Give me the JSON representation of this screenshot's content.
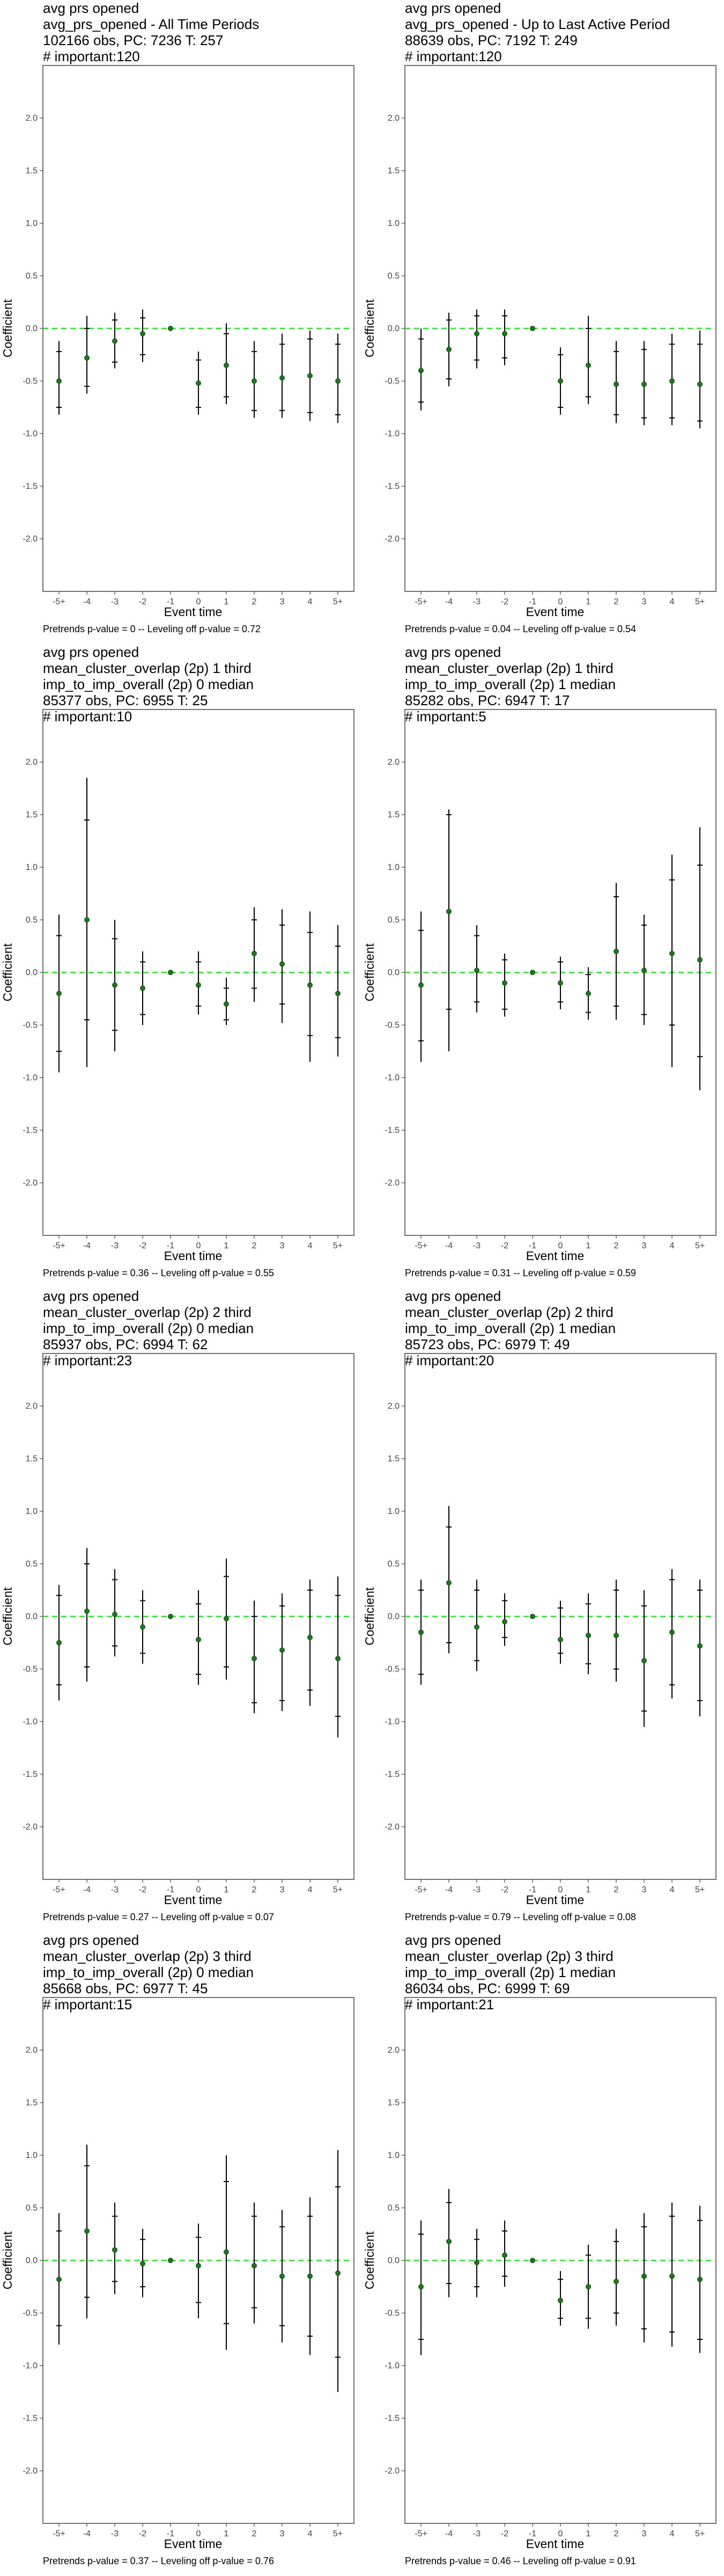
{
  "chart_data": [
    {
      "type": "errorbar",
      "title_lines": [
        "avg prs opened",
        "avg_prs_opened - All Time Periods",
        "102166 obs, PC: 7236 T: 257",
        "# important:120"
      ],
      "footer": "Pretrends p-value = 0 -- Leveling off p-value = 0.72",
      "xlabel": "Event time",
      "ylabel": "Coefficient",
      "categories": [
        "-5+",
        "-4",
        "-3",
        "-2",
        "-1",
        "0",
        "1",
        "2",
        "3",
        "4",
        "5+"
      ],
      "ylim": [
        -2.5,
        2.5
      ],
      "yticks": [
        "2.0",
        "1.5",
        "1.0",
        "0.5",
        "0.0",
        "-0.5",
        "-1.0",
        "-1.5",
        "-2.0"
      ],
      "estimates": [
        -0.5,
        -0.28,
        -0.12,
        -0.05,
        0.0,
        -0.52,
        -0.35,
        -0.5,
        -0.47,
        -0.45,
        -0.5
      ],
      "ci95_low": [
        -0.82,
        -0.62,
        -0.38,
        -0.32,
        0.0,
        -0.82,
        -0.72,
        -0.85,
        -0.85,
        -0.88,
        -0.9
      ],
      "ci95_high": [
        -0.12,
        0.12,
        0.15,
        0.18,
        0.0,
        -0.22,
        0.05,
        -0.12,
        -0.05,
        -0.02,
        -0.05
      ],
      "ci90_low": [
        -0.75,
        -0.55,
        -0.32,
        -0.25,
        0.0,
        -0.75,
        -0.65,
        -0.78,
        -0.78,
        -0.8,
        -0.82
      ],
      "ci90_high": [
        -0.22,
        0.0,
        0.08,
        0.1,
        0.0,
        -0.3,
        -0.05,
        -0.22,
        -0.15,
        -0.1,
        -0.15
      ]
    },
    {
      "type": "errorbar",
      "title_lines": [
        "avg prs opened",
        "avg_prs_opened - Up to Last Active Period",
        "88639 obs, PC: 7192 T: 249",
        "# important:120"
      ],
      "footer": "Pretrends p-value = 0.04 -- Leveling off p-value = 0.54",
      "xlabel": "Event time",
      "ylabel": "Coefficient",
      "categories": [
        "-5+",
        "-4",
        "-3",
        "-2",
        "-1",
        "0",
        "1",
        "2",
        "3",
        "4",
        "5+"
      ],
      "ylim": [
        -2.5,
        2.5
      ],
      "yticks": [
        "2.0",
        "1.5",
        "1.0",
        "0.5",
        "0.0",
        "-0.5",
        "-1.0",
        "-1.5",
        "-2.0"
      ],
      "estimates": [
        -0.4,
        -0.2,
        -0.05,
        -0.05,
        0.0,
        -0.5,
        -0.35,
        -0.53,
        -0.53,
        -0.5,
        -0.53
      ],
      "ci95_low": [
        -0.78,
        -0.55,
        -0.38,
        -0.35,
        0.0,
        -0.82,
        -0.72,
        -0.9,
        -0.92,
        -0.92,
        -0.95
      ],
      "ci95_high": [
        0.0,
        0.15,
        0.18,
        0.18,
        0.0,
        -0.18,
        0.12,
        -0.12,
        -0.12,
        -0.05,
        -0.02
      ],
      "ci90_low": [
        -0.7,
        -0.48,
        -0.3,
        -0.28,
        0.0,
        -0.75,
        -0.65,
        -0.82,
        -0.85,
        -0.85,
        -0.88
      ],
      "ci90_high": [
        -0.1,
        0.08,
        0.12,
        0.12,
        0.0,
        -0.25,
        0.0,
        -0.22,
        -0.2,
        -0.15,
        -0.15
      ]
    },
    {
      "type": "errorbar",
      "title_lines": [
        "avg prs opened",
        "mean_cluster_overlap (2p) 1 third",
        "imp_to_imp_overall (2p) 0 median",
        "85377 obs, PC: 6955 T: 25",
        "# important:10"
      ],
      "footer": "Pretrends p-value = 0.36 -- Leveling off p-value = 0.55",
      "xlabel": "Event time",
      "ylabel": "Coefficient",
      "categories": [
        "-5+",
        "-4",
        "-3",
        "-2",
        "-1",
        "0",
        "1",
        "2",
        "3",
        "4",
        "5+"
      ],
      "ylim": [
        -2.5,
        2.5
      ],
      "yticks": [
        "2.0",
        "1.5",
        "1.0",
        "0.5",
        "0.0",
        "-0.5",
        "-1.0",
        "-1.5",
        "-2.0"
      ],
      "estimates": [
        -0.2,
        0.5,
        -0.12,
        -0.15,
        0.0,
        -0.12,
        -0.3,
        0.18,
        0.08,
        -0.12,
        -0.2
      ],
      "ci95_low": [
        -0.95,
        -0.9,
        -0.75,
        -0.5,
        0.0,
        -0.4,
        -0.5,
        -0.28,
        -0.48,
        -0.85,
        -0.8
      ],
      "ci95_high": [
        0.55,
        1.85,
        0.5,
        0.2,
        0.0,
        0.2,
        -0.05,
        0.62,
        0.6,
        0.58,
        0.45
      ],
      "ci90_low": [
        -0.75,
        -0.45,
        -0.55,
        -0.4,
        0.0,
        -0.32,
        -0.45,
        -0.15,
        -0.3,
        -0.6,
        -0.62
      ],
      "ci90_high": [
        0.35,
        1.45,
        0.32,
        0.1,
        0.0,
        0.1,
        -0.15,
        0.5,
        0.45,
        0.38,
        0.25
      ]
    },
    {
      "type": "errorbar",
      "title_lines": [
        "avg prs opened",
        "mean_cluster_overlap (2p) 1 third",
        "imp_to_imp_overall (2p) 1 median",
        "85282 obs, PC: 6947 T: 17",
        "# important:5"
      ],
      "footer": "Pretrends p-value = 0.31 -- Leveling off p-value = 0.59",
      "xlabel": "Event time",
      "ylabel": "Coefficient",
      "categories": [
        "-5+",
        "-4",
        "-3",
        "-2",
        "-1",
        "0",
        "1",
        "2",
        "3",
        "4",
        "5+"
      ],
      "ylim": [
        -2.5,
        2.5
      ],
      "yticks": [
        "2.0",
        "1.5",
        "1.0",
        "0.5",
        "0.0",
        "-0.5",
        "-1.0",
        "-1.5",
        "-2.0"
      ],
      "estimates": [
        -0.12,
        0.58,
        0.02,
        -0.1,
        0.0,
        -0.1,
        -0.2,
        0.2,
        0.02,
        0.18,
        0.12
      ],
      "ci95_low": [
        -0.85,
        -0.75,
        -0.38,
        -0.42,
        0.0,
        -0.35,
        -0.45,
        -0.45,
        -0.5,
        -0.9,
        -1.12
      ],
      "ci95_high": [
        0.58,
        1.55,
        0.45,
        0.18,
        0.0,
        0.15,
        0.05,
        0.85,
        0.55,
        1.12,
        1.38
      ],
      "ci90_low": [
        -0.65,
        -0.35,
        -0.28,
        -0.35,
        0.0,
        -0.28,
        -0.38,
        -0.32,
        -0.4,
        -0.5,
        -0.8
      ],
      "ci90_high": [
        0.4,
        1.5,
        0.35,
        0.12,
        0.0,
        0.1,
        -0.02,
        0.72,
        0.45,
        0.88,
        1.02
      ]
    },
    {
      "type": "errorbar",
      "title_lines": [
        "avg prs opened",
        "mean_cluster_overlap (2p) 2 third",
        "imp_to_imp_overall (2p) 0 median",
        "85937 obs, PC: 6994 T: 62",
        "# important:23"
      ],
      "footer": "Pretrends p-value = 0.27 -- Leveling off p-value = 0.07",
      "xlabel": "Event time",
      "ylabel": "Coefficient",
      "categories": [
        "-5+",
        "-4",
        "-3",
        "-2",
        "-1",
        "0",
        "1",
        "2",
        "3",
        "4",
        "5+"
      ],
      "ylim": [
        -2.5,
        2.5
      ],
      "yticks": [
        "2.0",
        "1.5",
        "1.0",
        "0.5",
        "0.0",
        "-0.5",
        "-1.0",
        "-1.5",
        "-2.0"
      ],
      "estimates": [
        -0.25,
        0.05,
        0.02,
        -0.1,
        0.0,
        -0.22,
        -0.02,
        -0.4,
        -0.32,
        -0.2,
        -0.4
      ],
      "ci95_low": [
        -0.8,
        -0.62,
        -0.38,
        -0.45,
        0.0,
        -0.65,
        -0.6,
        -0.92,
        -0.9,
        -0.85,
        -1.15
      ],
      "ci95_high": [
        0.3,
        0.65,
        0.45,
        0.25,
        0.0,
        0.25,
        0.55,
        0.15,
        0.22,
        0.35,
        0.38
      ],
      "ci90_low": [
        -0.65,
        -0.48,
        -0.28,
        -0.35,
        0.0,
        -0.55,
        -0.48,
        -0.82,
        -0.8,
        -0.7,
        -0.95
      ],
      "ci90_high": [
        0.2,
        0.5,
        0.35,
        0.15,
        0.0,
        0.12,
        0.38,
        0.0,
        0.1,
        0.25,
        0.2
      ]
    },
    {
      "type": "errorbar",
      "title_lines": [
        "avg prs opened",
        "mean_cluster_overlap (2p) 2 third",
        "imp_to_imp_overall (2p) 1 median",
        "85723 obs, PC: 6979 T: 49",
        "# important:20"
      ],
      "footer": "Pretrends p-value = 0.79 -- Leveling off p-value = 0.08",
      "xlabel": "Event time",
      "ylabel": "Coefficient",
      "categories": [
        "-5+",
        "-4",
        "-3",
        "-2",
        "-1",
        "0",
        "1",
        "2",
        "3",
        "4",
        "5+"
      ],
      "ylim": [
        -2.5,
        2.5
      ],
      "yticks": [
        "2.0",
        "1.5",
        "1.0",
        "0.5",
        "0.0",
        "-0.5",
        "-1.0",
        "-1.5",
        "-2.0"
      ],
      "estimates": [
        -0.15,
        0.32,
        -0.1,
        -0.05,
        0.0,
        -0.22,
        -0.18,
        -0.18,
        -0.42,
        -0.15,
        -0.28
      ],
      "ci95_low": [
        -0.65,
        -0.35,
        -0.52,
        -0.28,
        0.0,
        -0.45,
        -0.55,
        -0.62,
        -1.05,
        -0.78,
        -0.95
      ],
      "ci95_high": [
        0.35,
        1.05,
        0.35,
        0.22,
        0.0,
        0.15,
        0.22,
        0.35,
        0.25,
        0.45,
        0.35
      ],
      "ci90_low": [
        -0.55,
        -0.25,
        -0.42,
        -0.2,
        0.0,
        -0.35,
        -0.45,
        -0.5,
        -0.9,
        -0.65,
        -0.8
      ],
      "ci90_high": [
        0.25,
        0.85,
        0.25,
        0.15,
        0.0,
        0.08,
        0.12,
        0.25,
        0.1,
        0.35,
        0.25
      ]
    },
    {
      "type": "errorbar",
      "title_lines": [
        "avg prs opened",
        "mean_cluster_overlap (2p) 3 third",
        "imp_to_imp_overall (2p) 0 median",
        "85668 obs, PC: 6977 T: 45",
        "# important:15"
      ],
      "footer": "Pretrends p-value = 0.37 -- Leveling off p-value = 0.76",
      "xlabel": "Event time",
      "ylabel": "Coefficient",
      "categories": [
        "-5+",
        "-4",
        "-3",
        "-2",
        "-1",
        "0",
        "1",
        "2",
        "3",
        "4",
        "5+"
      ],
      "ylim": [
        -2.5,
        2.5
      ],
      "yticks": [
        "2.0",
        "1.5",
        "1.0",
        "0.5",
        "0.0",
        "-0.5",
        "-1.0",
        "-1.5",
        "-2.0"
      ],
      "estimates": [
        -0.18,
        0.28,
        0.1,
        -0.03,
        0.0,
        -0.05,
        0.08,
        -0.05,
        -0.15,
        -0.15,
        -0.12
      ],
      "ci95_low": [
        -0.8,
        -0.55,
        -0.32,
        -0.35,
        0.0,
        -0.55,
        -0.85,
        -0.6,
        -0.78,
        -0.9,
        -1.25
      ],
      "ci95_high": [
        0.45,
        1.1,
        0.55,
        0.3,
        0.0,
        0.35,
        1.0,
        0.55,
        0.48,
        0.6,
        1.05
      ],
      "ci90_low": [
        -0.62,
        -0.35,
        -0.2,
        -0.25,
        0.0,
        -0.4,
        -0.6,
        -0.45,
        -0.62,
        -0.72,
        -0.92
      ],
      "ci90_high": [
        0.28,
        0.9,
        0.42,
        0.2,
        0.0,
        0.22,
        0.75,
        0.42,
        0.32,
        0.42,
        0.7
      ]
    },
    {
      "type": "errorbar",
      "title_lines": [
        "avg prs opened",
        "mean_cluster_overlap (2p) 3 third",
        "imp_to_imp_overall (2p) 1 median",
        "86034 obs, PC: 6999 T: 69",
        "# important:21"
      ],
      "footer": "Pretrends p-value = 0.46 -- Leveling off p-value = 0.91",
      "xlabel": "Event time",
      "ylabel": "Coefficient",
      "categories": [
        "-5+",
        "-4",
        "-3",
        "-2",
        "-1",
        "0",
        "1",
        "2",
        "3",
        "4",
        "5+"
      ],
      "ylim": [
        -2.5,
        2.5
      ],
      "yticks": [
        "2.0",
        "1.5",
        "1.0",
        "0.5",
        "0.0",
        "-0.5",
        "-1.0",
        "-1.5",
        "-2.0"
      ],
      "estimates": [
        -0.25,
        0.18,
        -0.02,
        0.05,
        0.0,
        -0.38,
        -0.25,
        -0.2,
        -0.15,
        -0.15,
        -0.18
      ],
      "ci95_low": [
        -0.9,
        -0.35,
        -0.35,
        -0.25,
        0.0,
        -0.62,
        -0.65,
        -0.62,
        -0.78,
        -0.82,
        -0.88
      ],
      "ci95_high": [
        0.38,
        0.68,
        0.3,
        0.38,
        0.0,
        -0.1,
        0.15,
        0.3,
        0.45,
        0.55,
        0.52
      ],
      "ci90_low": [
        -0.75,
        -0.22,
        -0.25,
        -0.15,
        0.0,
        -0.55,
        -0.55,
        -0.5,
        -0.65,
        -0.68,
        -0.75
      ],
      "ci90_high": [
        0.25,
        0.55,
        0.2,
        0.28,
        0.0,
        -0.18,
        0.05,
        0.18,
        0.32,
        0.42,
        0.38
      ]
    }
  ],
  "style": {
    "bar_color": "#000000",
    "point_color": "#1a7a1a",
    "zero_line_color": "#33dd33",
    "frame_color": "#444444",
    "tick_color": "#444444"
  }
}
